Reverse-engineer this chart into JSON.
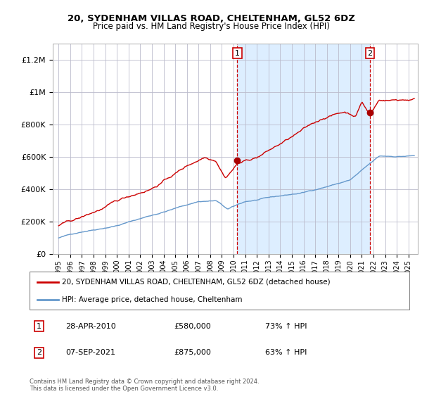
{
  "title_line1": "20, SYDENHAM VILLAS ROAD, CHELTENHAM, GL52 6DZ",
  "title_line2": "Price paid vs. HM Land Registry's House Price Index (HPI)",
  "legend_line1": "20, SYDENHAM VILLAS ROAD, CHELTENHAM, GL52 6DZ (detached house)",
  "legend_line2": "HPI: Average price, detached house, Cheltenham",
  "annotation1_date": "28-APR-2010",
  "annotation1_price": "£580,000",
  "annotation1_hpi": "73% ↑ HPI",
  "annotation2_date": "07-SEP-2021",
  "annotation2_price": "£875,000",
  "annotation2_hpi": "63% ↑ HPI",
  "sale1_date_num": 2010.33,
  "sale1_price": 580000,
  "sale2_date_num": 2021.69,
  "sale2_price": 875000,
  "hpi_color": "#6699cc",
  "price_color": "#cc0000",
  "sale_marker_color": "#aa0000",
  "bg_color": "#ddeeff",
  "grid_color": "#bbbbcc",
  "copyright_text": "Contains HM Land Registry data © Crown copyright and database right 2024.\nThis data is licensed under the Open Government Licence v3.0.",
  "ylim": [
    0,
    1300000
  ],
  "yticks": [
    0,
    200000,
    400000,
    600000,
    800000,
    1000000,
    1200000
  ],
  "ytick_labels": [
    "£0",
    "£200K",
    "£400K",
    "£600K",
    "£800K",
    "£1M",
    "£1.2M"
  ],
  "xlim_left": 1994.5,
  "xlim_right": 2025.8
}
